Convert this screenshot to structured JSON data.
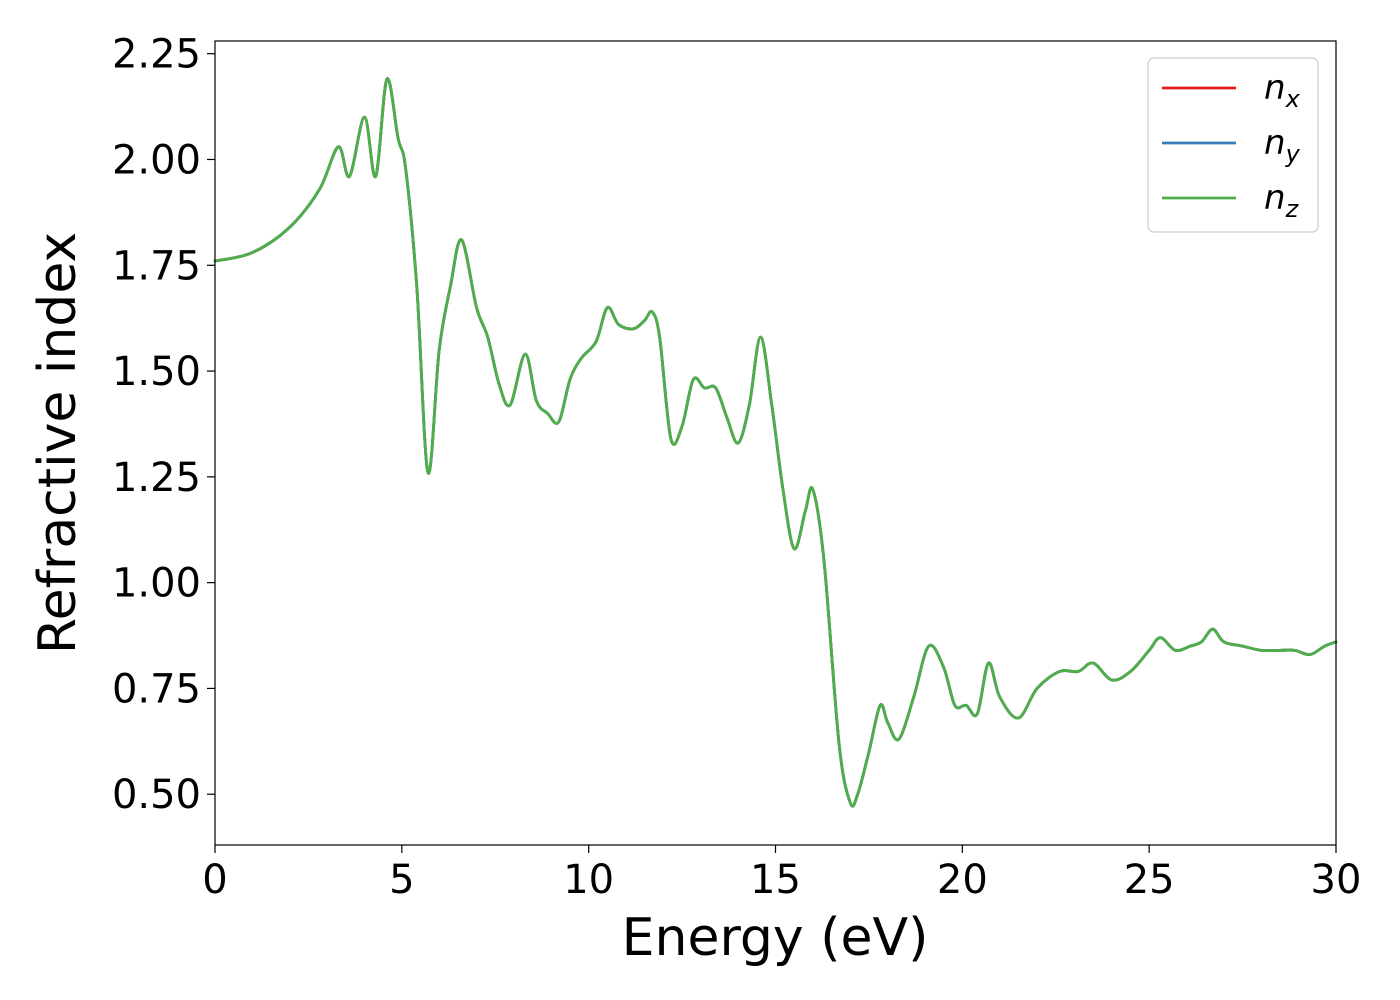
{
  "chart_data": {
    "type": "line",
    "xlabel": "Energy (eV)",
    "ylabel": "Refractive index",
    "xlim": [
      0,
      30
    ],
    "ylim": [
      0.38,
      2.28
    ],
    "xticks": [
      0,
      5,
      10,
      15,
      20,
      25,
      30
    ],
    "xtick_labels": [
      "0",
      "5",
      "10",
      "15",
      "20",
      "25",
      "30"
    ],
    "yticks": [
      0.5,
      0.75,
      1.0,
      1.25,
      1.5,
      1.75,
      2.0,
      2.25
    ],
    "ytick_labels": [
      "0.50",
      "0.75",
      "1.00",
      "1.25",
      "1.50",
      "1.75",
      "2.00",
      "2.25"
    ],
    "grid": false,
    "legend_position": "top-right",
    "x": [
      0.0,
      1.0,
      2.0,
      2.8,
      3.3,
      3.6,
      4.0,
      4.3,
      4.6,
      4.9,
      5.1,
      5.4,
      5.7,
      6.0,
      6.3,
      6.6,
      7.0,
      7.3,
      7.6,
      7.9,
      8.3,
      8.6,
      8.9,
      9.2,
      9.5,
      9.8,
      10.2,
      10.5,
      10.8,
      11.2,
      11.5,
      11.7,
      11.9,
      12.2,
      12.5,
      12.8,
      13.1,
      13.4,
      13.7,
      14.0,
      14.3,
      14.6,
      14.9,
      15.2,
      15.5,
      15.8,
      16.0,
      16.3,
      16.7,
      17.0,
      17.2,
      17.5,
      17.8,
      18.0,
      18.3,
      18.7,
      19.1,
      19.5,
      19.8,
      20.1,
      20.4,
      20.7,
      21.0,
      21.5,
      22.0,
      22.6,
      23.1,
      23.5,
      24.0,
      24.5,
      25.0,
      25.3,
      25.7,
      26.1,
      26.4,
      26.7,
      27.0,
      27.5,
      28.0,
      28.5,
      28.9,
      29.3,
      29.7,
      30.0
    ],
    "series": [
      {
        "name": "n_x",
        "color": "#e41a1c",
        "values": [
          1.76,
          1.78,
          1.84,
          1.93,
          2.03,
          1.96,
          2.1,
          1.96,
          2.19,
          2.05,
          1.98,
          1.7,
          1.26,
          1.55,
          1.7,
          1.81,
          1.65,
          1.58,
          1.47,
          1.42,
          1.54,
          1.43,
          1.4,
          1.38,
          1.48,
          1.53,
          1.57,
          1.65,
          1.61,
          1.6,
          1.62,
          1.64,
          1.58,
          1.34,
          1.37,
          1.48,
          1.46,
          1.46,
          1.39,
          1.33,
          1.42,
          1.58,
          1.42,
          1.22,
          1.08,
          1.17,
          1.22,
          1.05,
          0.62,
          0.48,
          0.5,
          0.6,
          0.71,
          0.67,
          0.63,
          0.73,
          0.85,
          0.8,
          0.71,
          0.71,
          0.69,
          0.81,
          0.73,
          0.68,
          0.75,
          0.79,
          0.79,
          0.81,
          0.77,
          0.79,
          0.84,
          0.87,
          0.84,
          0.85,
          0.86,
          0.89,
          0.86,
          0.85,
          0.84,
          0.84,
          0.84,
          0.83,
          0.85,
          0.86
        ]
      },
      {
        "name": "n_y",
        "color": "#377eb8",
        "values": [
          1.76,
          1.78,
          1.84,
          1.93,
          2.03,
          1.96,
          2.1,
          1.96,
          2.19,
          2.05,
          1.98,
          1.7,
          1.26,
          1.55,
          1.7,
          1.81,
          1.65,
          1.58,
          1.47,
          1.42,
          1.54,
          1.43,
          1.4,
          1.38,
          1.48,
          1.53,
          1.57,
          1.65,
          1.61,
          1.6,
          1.62,
          1.64,
          1.58,
          1.34,
          1.37,
          1.48,
          1.46,
          1.46,
          1.39,
          1.33,
          1.42,
          1.58,
          1.42,
          1.22,
          1.08,
          1.17,
          1.22,
          1.05,
          0.62,
          0.48,
          0.5,
          0.6,
          0.71,
          0.67,
          0.63,
          0.73,
          0.85,
          0.8,
          0.71,
          0.71,
          0.69,
          0.81,
          0.73,
          0.68,
          0.75,
          0.79,
          0.79,
          0.81,
          0.77,
          0.79,
          0.84,
          0.87,
          0.84,
          0.85,
          0.86,
          0.89,
          0.86,
          0.85,
          0.84,
          0.84,
          0.84,
          0.83,
          0.85,
          0.86
        ]
      },
      {
        "name": "n_z",
        "color": "#4daf4a",
        "values": [
          1.76,
          1.78,
          1.84,
          1.93,
          2.03,
          1.96,
          2.1,
          1.96,
          2.19,
          2.05,
          1.98,
          1.7,
          1.26,
          1.55,
          1.7,
          1.81,
          1.65,
          1.58,
          1.47,
          1.42,
          1.54,
          1.43,
          1.4,
          1.38,
          1.48,
          1.53,
          1.57,
          1.65,
          1.61,
          1.6,
          1.62,
          1.64,
          1.58,
          1.34,
          1.37,
          1.48,
          1.46,
          1.46,
          1.39,
          1.33,
          1.42,
          1.58,
          1.42,
          1.22,
          1.08,
          1.17,
          1.22,
          1.05,
          0.62,
          0.48,
          0.5,
          0.6,
          0.71,
          0.67,
          0.63,
          0.73,
          0.85,
          0.8,
          0.71,
          0.71,
          0.69,
          0.81,
          0.73,
          0.68,
          0.75,
          0.79,
          0.79,
          0.81,
          0.77,
          0.79,
          0.84,
          0.87,
          0.84,
          0.85,
          0.86,
          0.89,
          0.86,
          0.85,
          0.84,
          0.84,
          0.84,
          0.83,
          0.85,
          0.86
        ]
      }
    ],
    "legend": [
      {
        "base": "n",
        "sub": "x",
        "color": "#e41a1c"
      },
      {
        "base": "n",
        "sub": "y",
        "color": "#377eb8"
      },
      {
        "base": "n",
        "sub": "z",
        "color": "#4daf4a"
      }
    ]
  }
}
